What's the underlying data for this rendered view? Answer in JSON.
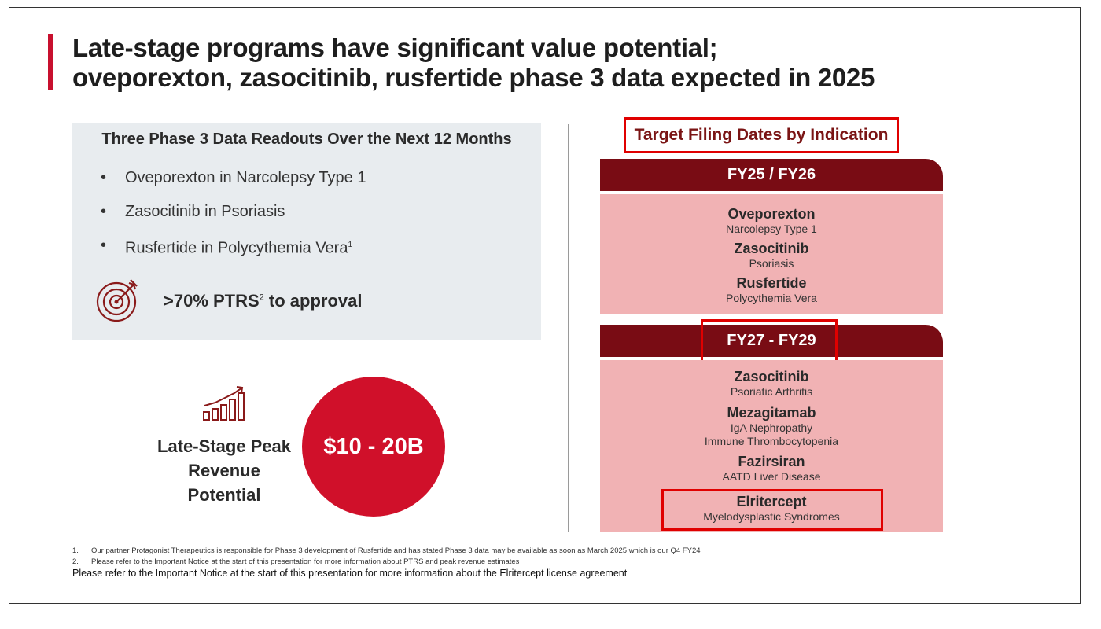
{
  "slide": {
    "title_line1": "Late-stage programs have significant value potential;",
    "title_line2": "oveporexton, zasocitinib, rusfertide phase 3 data expected in 2025"
  },
  "readouts": {
    "heading": "Three Phase 3 Data Readouts Over the Next 12 Months",
    "bullet_glyph": "•",
    "items": [
      {
        "text": "Oveporexton in Narcolepsy Type 1",
        "sup": ""
      },
      {
        "text": "Zasocitinib in Psoriasis",
        "sup": ""
      },
      {
        "text": "Rusfertide in Polycythemia Vera",
        "sup": "1"
      }
    ],
    "ptrs_value": ">70% PTRS",
    "ptrs_sup": "2",
    "ptrs_suffix": " to approval",
    "target_icon": "target-icon"
  },
  "revenue": {
    "label": "Late-Stage Peak Revenue Potential",
    "value": "$10 - 20B",
    "icon": "growth-chart-icon"
  },
  "filing": {
    "title": "Target Filing Dates by Indication",
    "periods": [
      {
        "label": "FY25 / FY26",
        "drugs": [
          {
            "name": "Oveporexton",
            "indications": [
              "Narcolepsy Type 1"
            ]
          },
          {
            "name": "Zasocitinib",
            "indications": [
              "Psoriasis"
            ]
          },
          {
            "name": "Rusfertide",
            "indications": [
              "Polycythemia Vera"
            ]
          }
        ]
      },
      {
        "label": "FY27 - FY29",
        "drugs": [
          {
            "name": "Zasocitinib",
            "indications": [
              "Psoriatic Arthritis"
            ]
          },
          {
            "name": "Mezagitamab",
            "indications": [
              "IgA Nephropathy",
              "Immune Thrombocytopenia"
            ]
          },
          {
            "name": "Fazirsiran",
            "indications": [
              "AATD Liver Disease"
            ]
          },
          {
            "name": "Elritercept",
            "indications": [
              "Myelodysplastic Syndromes"
            ]
          }
        ]
      }
    ]
  },
  "footnotes": [
    {
      "num": "1.",
      "text": "Our partner Protagonist Therapeutics is responsible for Phase 3 development of Rusfertide and has stated Phase 3 data may be available as soon as March 2025 which is our Q4 FY24"
    },
    {
      "num": "2.",
      "text": "Please refer to the Important Notice at the start of this presentation for more information about PTRS and peak revenue estimates"
    }
  ],
  "notice": "Please refer to the Important Notice at the start of this presentation for more information about the Elritercept license agreement",
  "colors": {
    "accent_red": "#c8102e",
    "dark_red": "#790c14",
    "pink": "#f1b2b4",
    "box_gray": "#e8ecef",
    "highlight_red": "#e00000"
  }
}
